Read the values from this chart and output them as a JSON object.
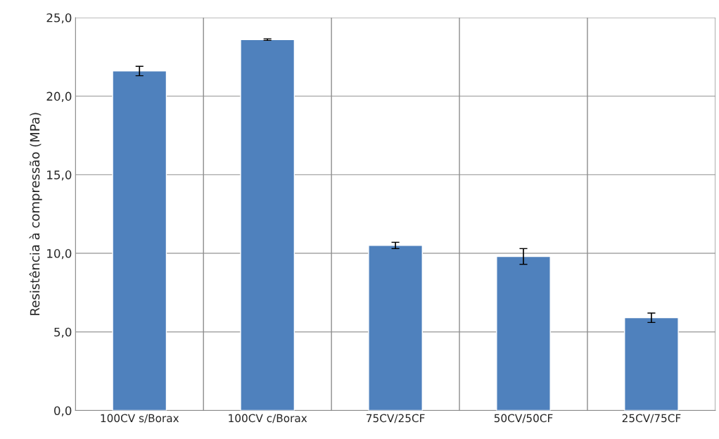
{
  "chart_data": {
    "type": "bar",
    "ylabel": "Resistência à compressão (MPa)",
    "categories": [
      "100CV s/Borax",
      "100CV c/Borax",
      "75CV/25CF",
      "50CV/50CF",
      "25CV/75CF"
    ],
    "values": [
      21.6,
      23.6,
      10.5,
      9.8,
      5.9
    ],
    "errors": [
      0.3,
      0.05,
      0.2,
      0.5,
      0.3
    ],
    "color": "#4f81bd",
    "ylim": [
      0,
      25
    ],
    "yticks": [
      {
        "value": 0,
        "label": "0,0"
      },
      {
        "value": 5,
        "label": "5,0"
      },
      {
        "value": 10,
        "label": "10,0"
      },
      {
        "value": 15,
        "label": "15,0"
      },
      {
        "value": 20,
        "label": "20,0"
      },
      {
        "value": 25,
        "label": "25,0"
      }
    ],
    "grid": true,
    "legend": false
  }
}
